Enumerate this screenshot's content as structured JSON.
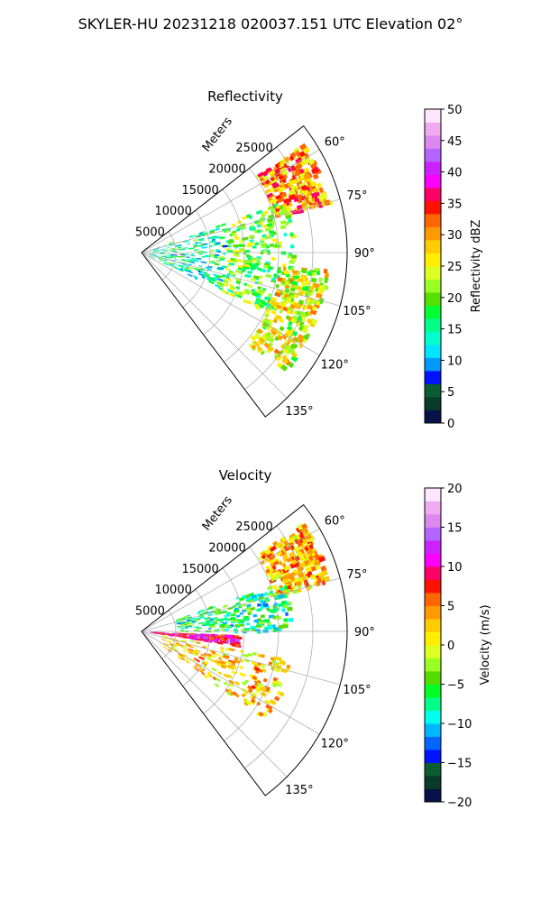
{
  "figure": {
    "title": "SKYLER-HU  20231218  020037.151 UTC Elevation 02°"
  },
  "chart_data": [
    {
      "type": "heatmap",
      "title": "Reflectivity",
      "projection": "polar sector",
      "radial_axis_label": "Meters",
      "radial_ticks": [
        5000,
        10000,
        15000,
        20000,
        25000
      ],
      "radial_tick_labels": [
        "5000",
        "10000",
        "15000",
        "20000",
        "25000"
      ],
      "radial_range": [
        0,
        30000
      ],
      "azimuth_range_deg": [
        52,
        143
      ],
      "azimuth_ticks": [
        60,
        75,
        90,
        105,
        120,
        135
      ],
      "azimuth_tick_labels": [
        "60°",
        "75°",
        "90°",
        "105°",
        "120°",
        "135°"
      ],
      "grid": true,
      "colorbar": {
        "label": "Reflectivity dBZ",
        "range": [
          0,
          50
        ],
        "ticks": [
          0,
          5,
          10,
          15,
          20,
          25,
          30,
          35,
          40,
          45,
          50
        ],
        "tick_labels": [
          "0",
          "5",
          "10",
          "15",
          "20",
          "25",
          "30",
          "35",
          "40",
          "45",
          "50"
        ],
        "colors": [
          "#08124a",
          "#0a3a2a",
          "#0b5c30",
          "#0012ff",
          "#0099ff",
          "#00e4ff",
          "#00ffcc",
          "#00ff88",
          "#00ff33",
          "#55e000",
          "#99ff22",
          "#ddff22",
          "#ffee00",
          "#ffcc00",
          "#ff9900",
          "#ff6600",
          "#ff1100",
          "#ff0066",
          "#ff00ff",
          "#cc22ff",
          "#b366ff",
          "#dd88ee",
          "#f0aaf0",
          "#ffe6ff"
        ]
      },
      "features": [
        {
          "name": "strong echo band",
          "az_deg": [
            56,
            75
          ],
          "range_m": [
            20000,
            28000
          ],
          "value_dbz": 30
        },
        {
          "name": "near-radar echo",
          "az_deg": [
            70,
            115
          ],
          "range_m": [
            1000,
            12000
          ],
          "value_dbz": 15
        },
        {
          "name": "mid-range echo",
          "az_deg": [
            70,
            115
          ],
          "range_m": [
            12000,
            22000
          ],
          "value_dbz": 20
        },
        {
          "name": "outer echo streaks",
          "az_deg": [
            95,
            130
          ],
          "range_m": [
            20000,
            27000
          ],
          "value_dbz": 25
        }
      ]
    },
    {
      "type": "heatmap",
      "title": "Velocity",
      "projection": "polar sector",
      "radial_axis_label": "Meters",
      "radial_ticks": [
        5000,
        10000,
        15000,
        20000,
        25000
      ],
      "radial_tick_labels": [
        "5000",
        "10000",
        "15000",
        "20000",
        "25000"
      ],
      "radial_range": [
        0,
        30000
      ],
      "azimuth_range_deg": [
        52,
        143
      ],
      "azimuth_ticks": [
        60,
        75,
        90,
        105,
        120,
        135
      ],
      "azimuth_tick_labels": [
        "60°",
        "75°",
        "90°",
        "105°",
        "120°",
        "135°"
      ],
      "grid": true,
      "colorbar": {
        "label": "Velocity (m/s)",
        "range": [
          -20,
          20
        ],
        "ticks": [
          -20,
          -15,
          -10,
          -5,
          0,
          5,
          10,
          15,
          20
        ],
        "tick_labels": [
          "−20",
          "−15",
          "−10",
          "−5",
          "0",
          "5",
          "10",
          "15",
          "20"
        ],
        "colors": [
          "#08124a",
          "#0a3a2a",
          "#0b5c30",
          "#0012ff",
          "#0066ff",
          "#00b8ff",
          "#00ffee",
          "#00ff88",
          "#00ff22",
          "#55dd00",
          "#99ff22",
          "#ddff22",
          "#ffee00",
          "#ffcc00",
          "#ff9900",
          "#ff6600",
          "#ff1100",
          "#ff0066",
          "#ff00ff",
          "#cc22ff",
          "#b366ff",
          "#dd88ee",
          "#f0aaf0",
          "#ffe6ff"
        ]
      },
      "features": [
        {
          "name": "receding region",
          "az_deg": [
            56,
            75
          ],
          "range_m": [
            20000,
            28000
          ],
          "value_ms": 3
        },
        {
          "name": "approaching region",
          "az_deg": [
            70,
            90
          ],
          "range_m": [
            5000,
            22000
          ],
          "value_ms": -7
        },
        {
          "name": "strong receding band",
          "az_deg": [
            92,
            98
          ],
          "range_m": [
            1000,
            14000
          ],
          "value_ms": 10
        },
        {
          "name": "southern sector",
          "az_deg": [
            100,
            125
          ],
          "range_m": [
            3000,
            22000
          ],
          "value_ms": 2
        }
      ]
    }
  ]
}
